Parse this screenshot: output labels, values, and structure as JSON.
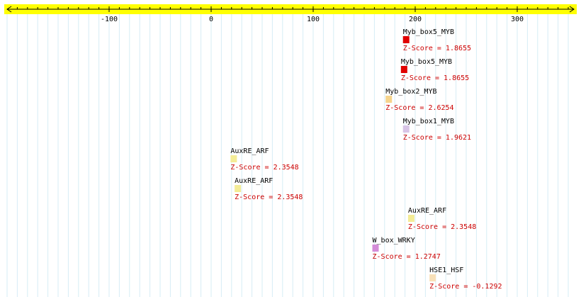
{
  "ruler": {
    "tick_labels": [
      "-100",
      "0",
      "100",
      "200",
      "300"
    ],
    "tick_values": [
      -100,
      0,
      100,
      200,
      300
    ],
    "range": [
      -200,
      360
    ],
    "minor_step": 10,
    "bar_color": "#ffff00",
    "grid_color": "#d6ecf6"
  },
  "sites": [
    {
      "name": "Myb_box5_MYB",
      "score_label": "Z-Score = 1.8655",
      "position": 188,
      "color": "#e00000"
    },
    {
      "name": "Myb_box5_MYB",
      "score_label": "Z-Score = 1.8655",
      "position": 186,
      "color": "#e00000"
    },
    {
      "name": "Myb_box2_MYB",
      "score_label": "Z-Score = 2.6254",
      "position": 171,
      "color": "#f6d48c"
    },
    {
      "name": "Myb_box1_MYB",
      "score_label": "Z-Score = 1.9621",
      "position": 188,
      "color": "#d8c4e6"
    },
    {
      "name": "AuxRE_ARF",
      "score_label": "Z-Score = 2.3548",
      "position": 19,
      "color": "#f4ec96"
    },
    {
      "name": "AuxRE_ARF",
      "score_label": "Z-Score = 2.3548",
      "position": 23,
      "color": "#f4ec96"
    },
    {
      "name": "AuxRE_ARF",
      "score_label": "Z-Score = 2.3548",
      "position": 193,
      "color": "#f4ec96"
    },
    {
      "name": "W_box_WRKY",
      "score_label": "Z-Score = 1.2747",
      "position": 158,
      "color": "#d48cd8"
    },
    {
      "name": "HSE1_HSF",
      "score_label": "Z-Score = -0.1292",
      "position": 214,
      "color": "#f8e0b8"
    }
  ]
}
